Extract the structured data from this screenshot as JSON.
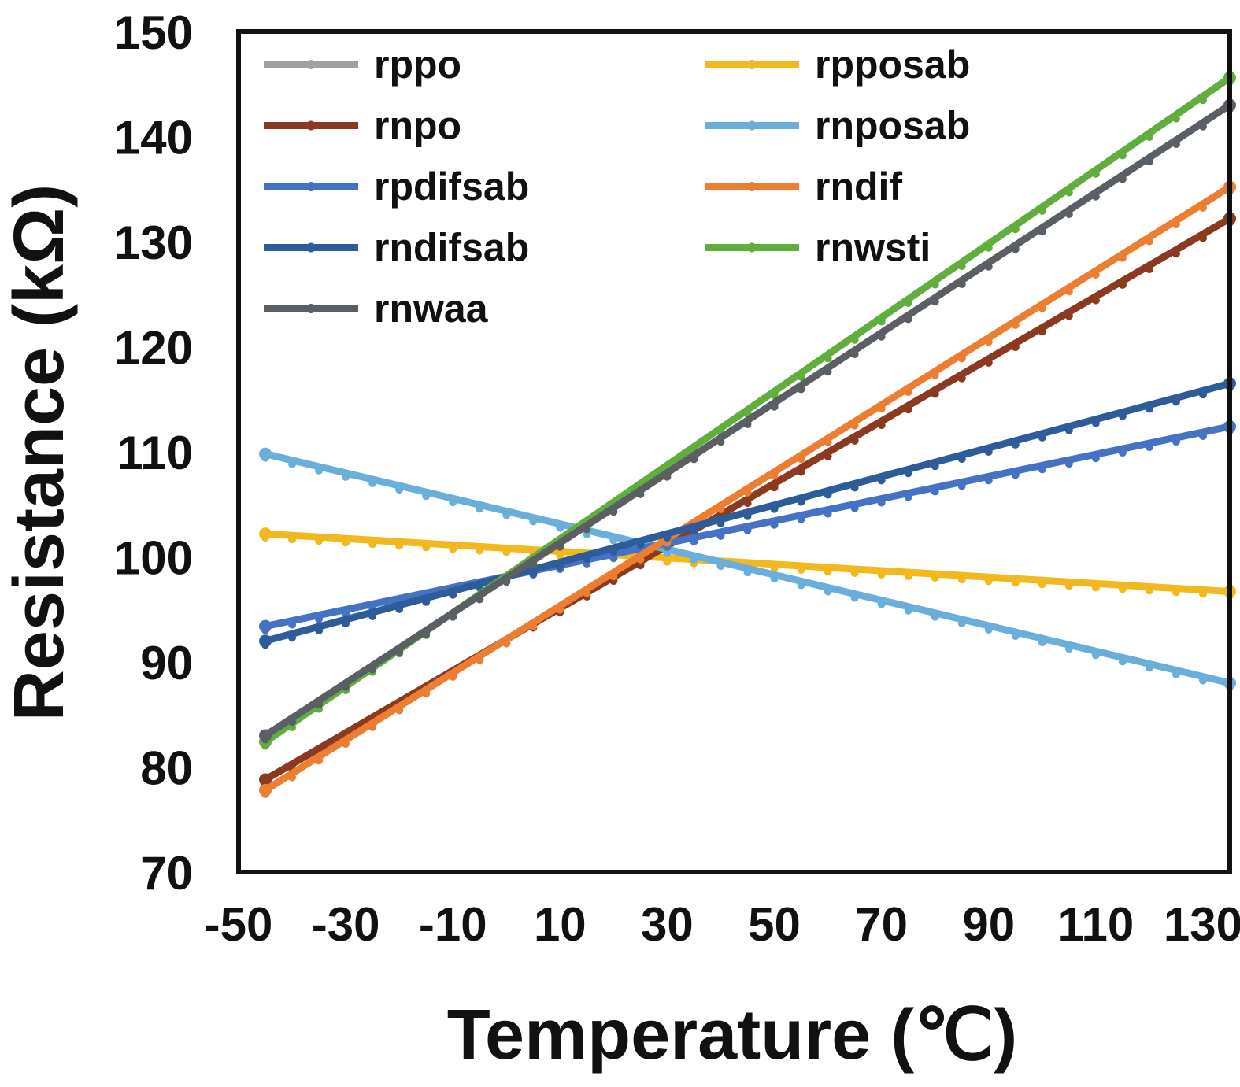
{
  "chart_data": {
    "type": "line",
    "title": "",
    "xlabel": "Temperature (℃)",
    "ylabel": "Resistance (kΩ)",
    "xlim": [
      -50,
      135
    ],
    "ylim": [
      70,
      150
    ],
    "xticks": [
      "-50",
      "-30",
      "-10",
      "10",
      "30",
      "50",
      "70",
      "90",
      "110",
      "130"
    ],
    "yticks": [
      "70",
      "80",
      "90",
      "100",
      "110",
      "120",
      "130",
      "140",
      "150"
    ],
    "grid": false,
    "legend_position": "top-left",
    "x": [
      -45,
      135
    ],
    "series": [
      {
        "name": "rppo",
        "color": "#a0a0a0",
        "values": [
          78.8,
          132.2
        ]
      },
      {
        "name": "rpposab",
        "color": "#f2b81d",
        "values": [
          102.2,
          96.7
        ]
      },
      {
        "name": "rnpo",
        "color": "#8b3a1f",
        "values": [
          78.8,
          132.2
        ]
      },
      {
        "name": "rnposab",
        "color": "#6aaedc",
        "values": [
          109.8,
          88.0
        ]
      },
      {
        "name": "rpdifsab",
        "color": "#4472c4",
        "values": [
          93.4,
          112.4
        ]
      },
      {
        "name": "rndif",
        "color": "#ed7d31",
        "values": [
          77.8,
          135.2
        ]
      },
      {
        "name": "rndifsab",
        "color": "#2e5c9a",
        "values": [
          92.0,
          116.5
        ]
      },
      {
        "name": "rnwsti",
        "color": "#5fae3e",
        "values": [
          82.4,
          145.6
        ]
      },
      {
        "name": "rnwaa",
        "color": "#5a5f66",
        "values": [
          83.0,
          143.0
        ]
      }
    ]
  }
}
